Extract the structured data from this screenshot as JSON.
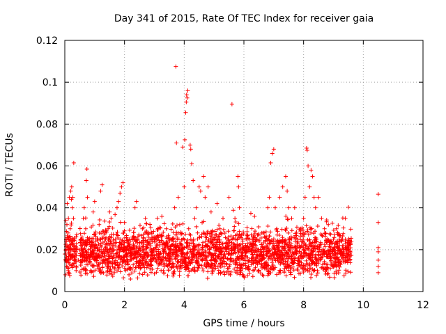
{
  "chart_data": {
    "type": "scatter",
    "title": "Day 341 of 2015, Rate Of TEC Index for receiver gaia",
    "xlabel": "GPS time / hours",
    "ylabel": "ROTI / TECUs",
    "xlim": [
      0,
      12
    ],
    "ylim": [
      0,
      0.12
    ],
    "x_ticks": [
      0,
      2,
      4,
      6,
      8,
      10,
      12
    ],
    "x_tick_labels": [
      "0",
      "2",
      "4",
      "6",
      "8",
      "10",
      "12"
    ],
    "y_ticks": [
      0,
      0.02,
      0.04,
      0.06,
      0.08,
      0.1,
      0.12
    ],
    "y_tick_labels": [
      "0",
      "0.02",
      "0.04",
      "0.06",
      "0.08",
      "0.1",
      "0.12"
    ],
    "grid": true,
    "marker": "+",
    "color": "#ff0000",
    "series": [
      {
        "points": [
          [
            0.02,
            0.008
          ],
          [
            0.03,
            0.018
          ],
          [
            0.05,
            0.025
          ],
          [
            0.06,
            0.012
          ],
          [
            0.07,
            0.032
          ],
          [
            0.08,
            0.042
          ],
          [
            0.09,
            0.022
          ],
          [
            0.1,
            0.015
          ],
          [
            0.11,
            0.028
          ],
          [
            0.12,
            0.035
          ],
          [
            0.13,
            0.009
          ],
          [
            0.14,
            0.02
          ],
          [
            0.15,
            0.045
          ],
          [
            0.16,
            0.026
          ],
          [
            0.17,
            0.013
          ],
          [
            0.18,
            0.03
          ],
          [
            0.2,
            0.048
          ],
          [
            0.22,
            0.044
          ],
          [
            0.23,
            0.05
          ],
          [
            0.25,
            0.04
          ],
          [
            0.27,
            0.045
          ],
          [
            0.29,
            0.035
          ],
          [
            0.3,
            0.0615
          ],
          [
            0.32,
            0.022
          ],
          [
            0.35,
            0.016
          ],
          [
            0.38,
            0.01
          ],
          [
            0.45,
            0.015
          ],
          [
            0.5,
            0.02
          ],
          [
            0.55,
            0.025
          ],
          [
            0.6,
            0.018
          ],
          [
            0.62,
            0.035
          ],
          [
            0.65,
            0.04
          ],
          [
            0.7,
            0.03
          ],
          [
            0.72,
            0.053
          ],
          [
            0.74,
            0.0585
          ],
          [
            0.76,
            0.045
          ],
          [
            0.8,
            0.02
          ],
          [
            0.85,
            0.014
          ],
          [
            0.9,
            0.022
          ],
          [
            0.95,
            0.038
          ],
          [
            1.0,
            0.043
          ],
          [
            1.05,
            0.018
          ],
          [
            1.1,
            0.025
          ],
          [
            1.15,
            0.032
          ],
          [
            1.2,
            0.048
          ],
          [
            1.25,
            0.051
          ],
          [
            1.3,
            0.02
          ],
          [
            1.35,
            0.028
          ],
          [
            1.4,
            0.015
          ],
          [
            1.45,
            0.03
          ],
          [
            1.5,
            0.038
          ],
          [
            1.55,
            0.035
          ],
          [
            1.6,
            0.012
          ],
          [
            1.65,
            0.02
          ],
          [
            1.7,
            0.025
          ],
          [
            1.75,
            0.04
          ],
          [
            1.8,
            0.043
          ],
          [
            1.85,
            0.047
          ],
          [
            1.9,
            0.05
          ],
          [
            1.95,
            0.052
          ],
          [
            2.0,
            0.033
          ],
          [
            2.05,
            0.02
          ],
          [
            2.1,
            0.015
          ],
          [
            2.15,
            0.008
          ],
          [
            2.2,
            0.006
          ],
          [
            2.3,
            0.022
          ],
          [
            2.35,
            0.04
          ],
          [
            2.4,
            0.043
          ],
          [
            2.45,
            0.025
          ],
          [
            2.5,
            0.018
          ],
          [
            2.6,
            0.03
          ],
          [
            2.7,
            0.035
          ],
          [
            2.8,
            0.028
          ],
          [
            2.9,
            0.02
          ],
          [
            3.0,
            0.025
          ],
          [
            3.1,
            0.035
          ],
          [
            3.2,
            0.015
          ],
          [
            3.3,
            0.01
          ],
          [
            3.4,
            0.03
          ],
          [
            3.5,
            0.02
          ],
          [
            3.6,
            0.025
          ],
          [
            3.68,
            0.04
          ],
          [
            3.72,
            0.1075
          ],
          [
            3.74,
            0.071
          ],
          [
            3.8,
            0.045
          ],
          [
            3.85,
            0.032
          ],
          [
            3.95,
            0.069
          ],
          [
            4.0,
            0.05
          ],
          [
            4.02,
            0.0725
          ],
          [
            4.05,
            0.0855
          ],
          [
            4.07,
            0.0905
          ],
          [
            4.08,
            0.094
          ],
          [
            4.1,
            0.0925
          ],
          [
            4.12,
            0.096
          ],
          [
            4.15,
            0.03
          ],
          [
            4.2,
            0.07
          ],
          [
            4.22,
            0.068
          ],
          [
            4.25,
            0.061
          ],
          [
            4.3,
            0.053
          ],
          [
            4.35,
            0.035
          ],
          [
            4.4,
            0.04
          ],
          [
            4.45,
            0.028
          ],
          [
            4.5,
            0.05
          ],
          [
            4.55,
            0.048
          ],
          [
            4.6,
            0.033
          ],
          [
            4.65,
            0.055
          ],
          [
            4.7,
            0.045
          ],
          [
            4.8,
            0.05
          ],
          [
            4.9,
            0.038
          ],
          [
            5.0,
            0.025
          ],
          [
            5.1,
            0.042
          ],
          [
            5.2,
            0.03
          ],
          [
            5.3,
            0.035
          ],
          [
            5.4,
            0.02
          ],
          [
            5.5,
            0.045
          ],
          [
            5.6,
            0.0895
          ],
          [
            5.7,
            0.035
          ],
          [
            5.8,
            0.055
          ],
          [
            5.82,
            0.05
          ],
          [
            5.85,
            0.04
          ],
          [
            5.9,
            0.01
          ],
          [
            5.95,
            0.008
          ],
          [
            6.0,
            0.02
          ],
          [
            6.2,
            0.025
          ],
          [
            6.4,
            0.022
          ],
          [
            6.6,
            0.028
          ],
          [
            6.8,
            0.04
          ],
          [
            6.85,
            0.045
          ],
          [
            6.9,
            0.0615
          ],
          [
            6.95,
            0.066
          ],
          [
            7.0,
            0.068
          ],
          [
            7.05,
            0.04
          ],
          [
            7.1,
            0.03
          ],
          [
            7.2,
            0.045
          ],
          [
            7.3,
            0.05
          ],
          [
            7.4,
            0.055
          ],
          [
            7.45,
            0.048
          ],
          [
            7.5,
            0.04
          ],
          [
            7.6,
            0.035
          ],
          [
            7.7,
            0.04
          ],
          [
            7.8,
            0.025
          ],
          [
            7.9,
            0.03
          ],
          [
            8.0,
            0.035
          ],
          [
            8.05,
            0.045
          ],
          [
            8.1,
            0.0685
          ],
          [
            8.12,
            0.0675
          ],
          [
            8.15,
            0.06
          ],
          [
            8.2,
            0.05
          ],
          [
            8.25,
            0.058
          ],
          [
            8.3,
            0.055
          ],
          [
            8.35,
            0.045
          ],
          [
            8.4,
            0.04
          ],
          [
            8.5,
            0.045
          ],
          [
            8.6,
            0.035
          ],
          [
            8.7,
            0.03
          ],
          [
            8.8,
            0.025
          ],
          [
            8.9,
            0.02
          ],
          [
            9.0,
            0.025
          ],
          [
            9.1,
            0.03
          ],
          [
            9.2,
            0.02
          ],
          [
            9.3,
            0.025
          ],
          [
            9.4,
            0.035
          ],
          [
            9.5,
            0.022
          ],
          [
            9.55,
            0.015
          ],
          [
            10.5,
            0.0465
          ],
          [
            10.5,
            0.033
          ],
          [
            10.5,
            0.021
          ],
          [
            10.5,
            0.019
          ],
          [
            10.5,
            0.015
          ],
          [
            10.5,
            0.012
          ],
          [
            10.5,
            0.009
          ]
        ]
      }
    ],
    "dense_band_note_values": {
      "dense_x_ranges": [
        [
          0.0,
          0.4
        ],
        [
          0.5,
          9.6
        ]
      ],
      "dense_y_range": [
        0.006,
        0.03
      ]
    }
  }
}
